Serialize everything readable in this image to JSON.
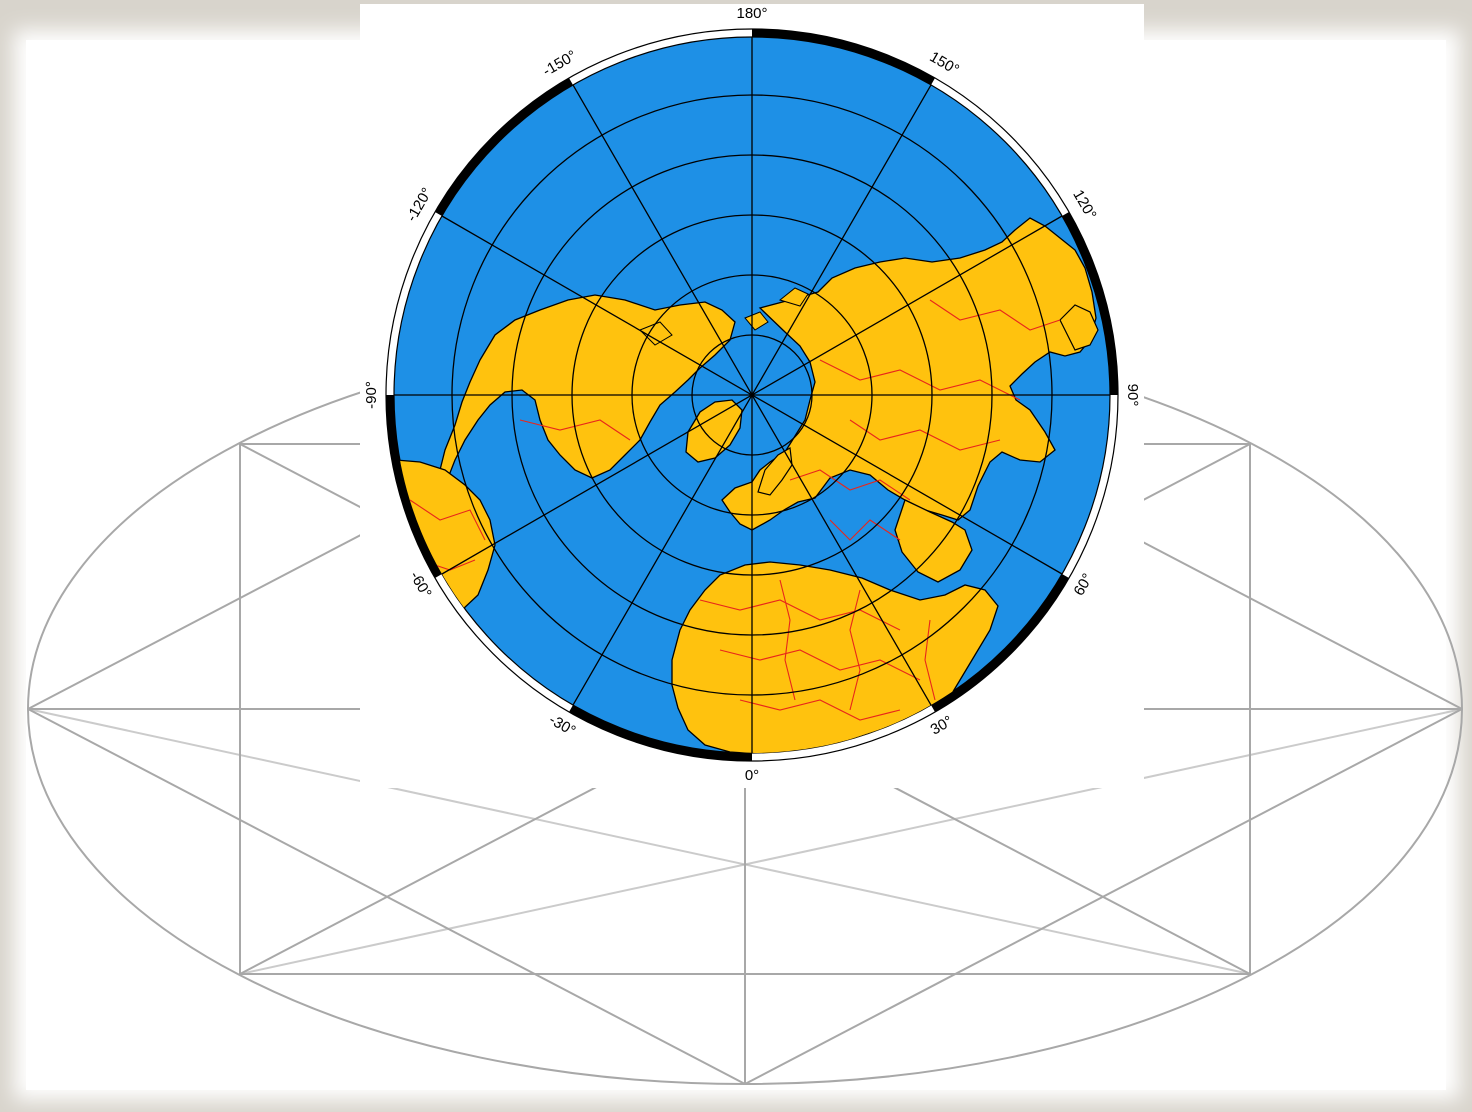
{
  "map": {
    "projection": "polar azimuthal, north pole centered",
    "labels": {
      "top": "180°",
      "top_left": "-150°",
      "top_right": "150°",
      "left_upper": "-120°",
      "right_upper": "120°",
      "left": "-90°",
      "right": "90°",
      "left_lower": "-60°",
      "right_lower": "60°",
      "bottom_left": "-30°",
      "bottom_right": "30°",
      "bottom": "0°"
    },
    "colors": {
      "ocean": "#1e90e6",
      "land": "#ffc20e",
      "borders": "#e8261b",
      "coast": "#000000",
      "grid": "#000000",
      "plane_lines": "#a8a8a8",
      "backdrop": "#d8d4cc"
    },
    "graticule": {
      "meridian_step_deg": 30,
      "latitude_circles": 5,
      "frame_band": "alternating black and white every 30°"
    }
  }
}
